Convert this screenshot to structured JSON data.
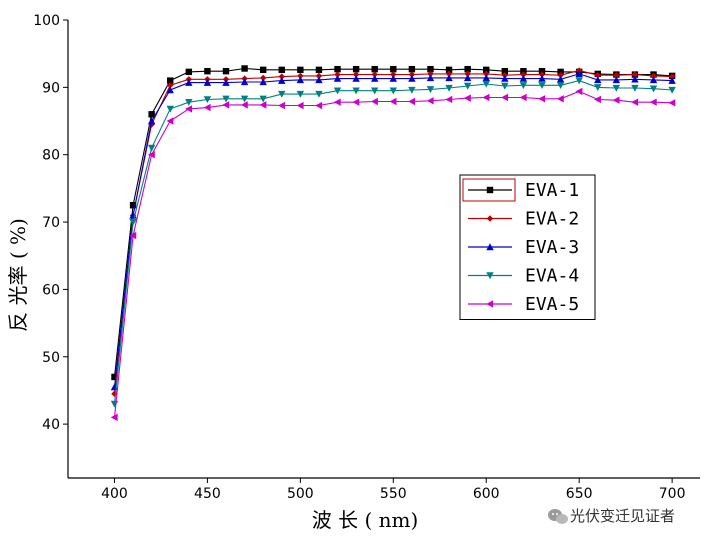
{
  "chart_data": {
    "type": "line",
    "xlabel": "波 长 ( nm)",
    "ylabel": "反 光率 ( %)",
    "xlim": [
      375,
      715
    ],
    "ylim": [
      32,
      100
    ],
    "x_ticks": [
      400,
      450,
      500,
      550,
      600,
      650,
      700
    ],
    "y_ticks": [
      40,
      50,
      60,
      70,
      80,
      90,
      100
    ],
    "grid": false,
    "legend_position": "right-middle",
    "x": [
      400,
      410,
      420,
      430,
      440,
      450,
      460,
      470,
      480,
      490,
      500,
      510,
      520,
      530,
      540,
      550,
      560,
      570,
      580,
      590,
      600,
      610,
      620,
      630,
      640,
      650,
      660,
      670,
      680,
      690,
      700
    ],
    "series": [
      {
        "name": "EVA-1",
        "color": "#000000",
        "marker": "square",
        "values": [
          47,
          72.5,
          86,
          91,
          92.3,
          92.4,
          92.4,
          92.8,
          92.6,
          92.6,
          92.6,
          92.6,
          92.7,
          92.7,
          92.7,
          92.7,
          92.7,
          92.7,
          92.6,
          92.7,
          92.6,
          92.4,
          92.4,
          92.4,
          92.3,
          92.3,
          92,
          91.9,
          91.9,
          91.9,
          91.7
        ]
      },
      {
        "name": "EVA-2",
        "color": "#c00000",
        "marker": "diamond",
        "values": [
          44.5,
          71,
          84.5,
          90.3,
          91.2,
          91.2,
          91.2,
          91.3,
          91.4,
          91.6,
          91.7,
          91.7,
          91.9,
          91.9,
          91.9,
          91.9,
          91.9,
          92,
          92,
          92,
          92,
          91.8,
          91.9,
          91.9,
          91.8,
          92.5,
          91.8,
          91.8,
          91.9,
          91.7,
          91.6
        ]
      },
      {
        "name": "EVA-3",
        "color": "#0000cc",
        "marker": "triangle-up",
        "values": [
          45.5,
          71,
          85,
          89.6,
          90.7,
          90.7,
          90.7,
          90.8,
          90.8,
          91,
          91.1,
          91.1,
          91.3,
          91.3,
          91.3,
          91.3,
          91.3,
          91.4,
          91.4,
          91.4,
          91.4,
          91.3,
          91.3,
          91.3,
          91.2,
          92,
          91.1,
          91.1,
          91.2,
          91.1,
          91
        ]
      },
      {
        "name": "EVA-4",
        "color": "#008080",
        "marker": "triangle-down",
        "values": [
          43,
          70,
          81,
          86.8,
          87.8,
          88.2,
          88.3,
          88.3,
          88.3,
          89,
          89,
          89,
          89.5,
          89.5,
          89.5,
          89.5,
          89.6,
          89.7,
          89.9,
          90.2,
          90.5,
          90.2,
          90.3,
          90.3,
          90.3,
          91,
          90,
          89.9,
          89.9,
          89.8,
          89.6
        ]
      },
      {
        "name": "EVA-5",
        "color": "#cc00cc",
        "marker": "triangle-left",
        "values": [
          41,
          68,
          80,
          85,
          86.8,
          87,
          87.4,
          87.4,
          87.4,
          87.3,
          87.3,
          87.3,
          87.8,
          87.8,
          87.9,
          87.9,
          87.9,
          88,
          88.2,
          88.4,
          88.5,
          88.5,
          88.5,
          88.3,
          88.3,
          89.4,
          88.2,
          88.1,
          87.8,
          87.8,
          87.7
        ]
      }
    ]
  },
  "watermark": {
    "text": "光伏变迁见证者",
    "icon": "wechat-icon"
  }
}
